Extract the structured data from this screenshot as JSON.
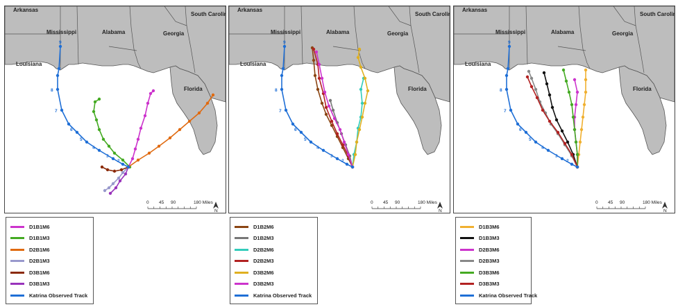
{
  "panels": [
    {
      "states": {
        "arkansas": "Arkansas",
        "mississippi": "Mississippi",
        "alabama": "Alabama",
        "georgia": "Georgia",
        "south_carolina": "South Carolina",
        "louisiana": "Louisiana",
        "florida": "Florida"
      },
      "scale": {
        "ticks": [
          "0",
          "45",
          "90",
          "180 Miles"
        ]
      },
      "north": "N",
      "legend": [
        {
          "label": "D1B1M6",
          "color": "#cc33cc"
        },
        {
          "label": "D1B1M3",
          "color": "#44aa22"
        },
        {
          "label": "D2B1M6",
          "color": "#e06a10"
        },
        {
          "label": "D2B1M3",
          "color": "#9999cc"
        },
        {
          "label": "D3B1M6",
          "color": "#8b2a08"
        },
        {
          "label": "D3B1M3",
          "color": "#9933bb"
        },
        {
          "label": "Katrina Observed Track",
          "color": "#1f6fd6"
        }
      ]
    },
    {
      "states": {
        "arkansas": "Arkansas",
        "mississippi": "Mississippi",
        "alabama": "Alabama",
        "georgia": "Georgia",
        "south_carolina": "South Carolina",
        "louisiana": "Louisiana",
        "florida": "Florida"
      },
      "scale": {
        "ticks": [
          "0",
          "45",
          "90",
          "180 Miles"
        ]
      },
      "north": "N",
      "legend": [
        {
          "label": "D1B2M6",
          "color": "#8b4513"
        },
        {
          "label": "D1B2M3",
          "color": "#777777"
        },
        {
          "label": "D2B2M6",
          "color": "#33ccbb"
        },
        {
          "label": "D2B2M3",
          "color": "#b22222"
        },
        {
          "label": "D3B2M6",
          "color": "#e0b020"
        },
        {
          "label": "D3B2M3",
          "color": "#cc33cc"
        },
        {
          "label": "Katrina Observed Track",
          "color": "#1f6fd6"
        }
      ]
    },
    {
      "states": {
        "arkansas": "Arkansas",
        "mississippi": "Mississippi",
        "alabama": "Alabama",
        "georgia": "Georgia",
        "south_carolina": "South Carolina",
        "louisiana": "Louisiana",
        "florida": "Florida"
      },
      "scale": {
        "ticks": [
          "0",
          "45",
          "90",
          "180 Miles"
        ]
      },
      "north": "N",
      "legend": [
        {
          "label": "D1B3M6",
          "color": "#f0b030"
        },
        {
          "label": "D1B3M3",
          "color": "#111111"
        },
        {
          "label": "D2B3M6",
          "color": "#cc33cc"
        },
        {
          "label": "D2B3M3",
          "color": "#888888"
        },
        {
          "label": "D3B3M6",
          "color": "#44aa22"
        },
        {
          "label": "D3B3M3",
          "color": "#b22222"
        },
        {
          "label": "Katrina Observed Track",
          "color": "#1f6fd6"
        }
      ]
    }
  ]
}
